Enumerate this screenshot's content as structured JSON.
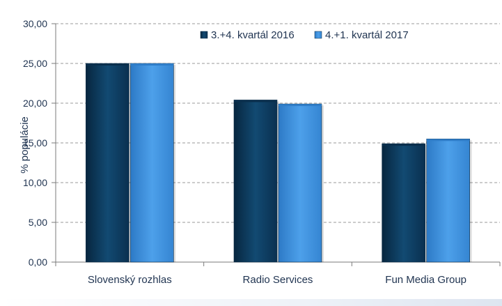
{
  "chart_data": {
    "type": "bar",
    "title": "",
    "xlabel": "",
    "ylabel": "% populácie",
    "ylim": [
      0,
      30
    ],
    "y_ticks": [
      "0,00",
      "5,00",
      "10,00",
      "15,00",
      "20,00",
      "25,00",
      "30,00"
    ],
    "grid": true,
    "legend_position": "top-right",
    "categories": [
      "Slovenský rozhlas",
      "Radio Services",
      "Fun Media Group"
    ],
    "series": [
      {
        "name": "3.+4. kvartál 2016",
        "color": "#0d3a5c",
        "values": [
          25.0,
          20.4,
          14.9
        ]
      },
      {
        "name": "4.+1. kvartál 2017",
        "color": "#3a8edb",
        "values": [
          25.0,
          19.9,
          15.5
        ]
      }
    ]
  }
}
